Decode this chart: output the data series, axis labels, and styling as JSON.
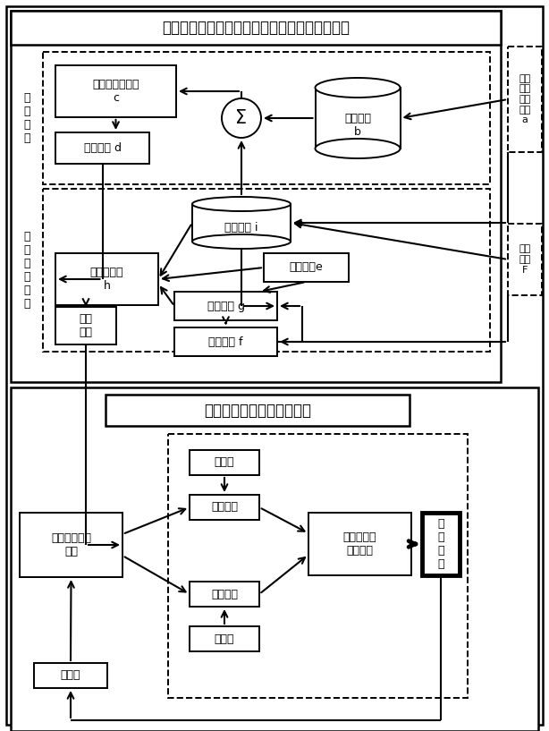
{
  "bg_color": "#ffffff",
  "title_top": "多性能目标下的纵横向协同自评判优化决策方法",
  "title_bottom": "高低双源主从协同控制方法",
  "label_offline": "离\n线\n学\n习",
  "label_online": "在\n线\n强\n化\n学\n习",
  "nn_label": "多尺度神经网络\nc",
  "hist_label": "历史数据\nb",
  "offline_policy_label": "离线策略 d",
  "sigma_label": "Σ",
  "online_policy_label": "在线策略 i",
  "online_lr_label": "在线学习率\nh",
  "reward_label": "回报函数e",
  "eval_error_label": "评价误差 g",
  "eval_func_label": "评价函数 f",
  "exp_angle_label": "期望\n转角",
  "driver_label": "驾驶\n员经\n验数\n据集\na",
  "env_label": "环境\n感知\nF",
  "dual_ctrl_label": "双源主从协同\n控制",
  "power1_label": "电源一",
  "inverter1_label": "逆变器一",
  "power2_label": "电源二",
  "inverter2_label": "逆变器二",
  "motor_label": "开绕组永磁\n同步电机",
  "steering_label": "转\n向\n机\n构",
  "sensor_label": "传感器"
}
